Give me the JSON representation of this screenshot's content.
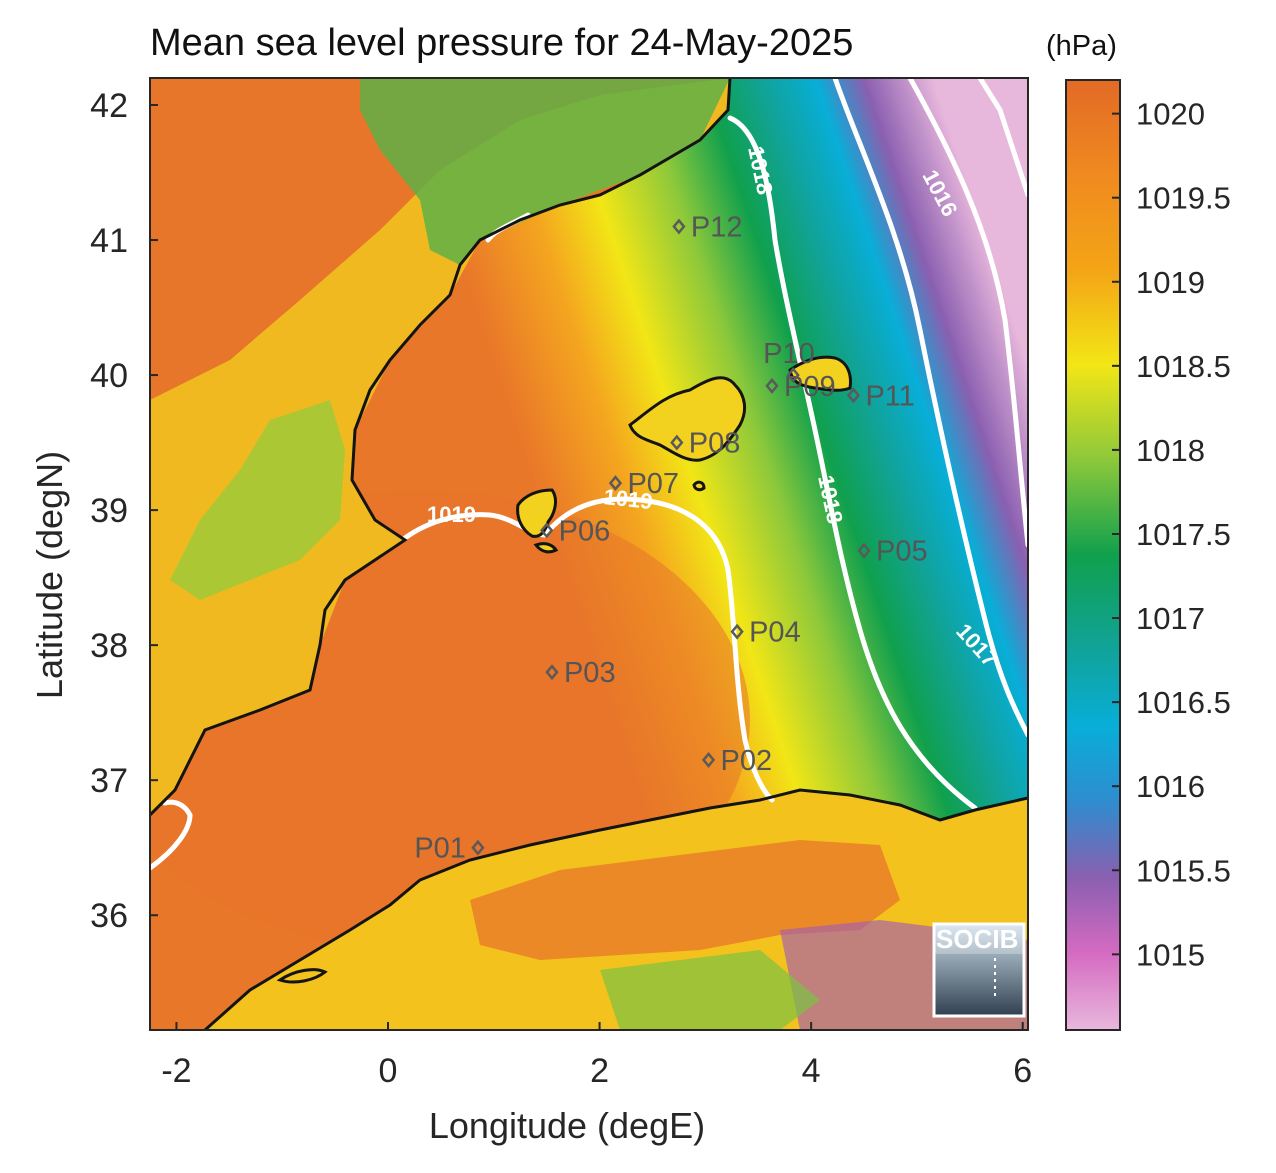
{
  "title": "Mean sea level pressure for 24-May-2025",
  "colorbar": {
    "unit": "(hPa)",
    "ticks": [
      "1020",
      "1019.5",
      "1019",
      "1018.5",
      "1018",
      "1017.5",
      "1017",
      "1016.5",
      "1016",
      "1015.5",
      "1015"
    ],
    "range": [
      1014.55,
      1020.2
    ],
    "colors": [
      "#e8b7dc",
      "#d56bc2",
      "#8a5fb0",
      "#2f8ccf",
      "#08aed8",
      "#11a39a",
      "#10a04d",
      "#8cc83b",
      "#f2e616",
      "#f4a416",
      "#e26a26"
    ]
  },
  "axes": {
    "xlabel": "Longitude (degE)",
    "ylabel": "Latitude (degN)",
    "xticks": [
      "-2",
      "0",
      "2",
      "4",
      "6"
    ],
    "yticks": [
      "42",
      "41",
      "40",
      "39",
      "38",
      "37",
      "36"
    ],
    "xlim": [
      -2.25,
      6.05
    ],
    "ylim": [
      35.15,
      42.2
    ]
  },
  "contours": [
    {
      "label": "1016"
    },
    {
      "label": "1017"
    },
    {
      "label": "1018"
    },
    {
      "label": "1018"
    },
    {
      "label": "1019"
    },
    {
      "label": "1019"
    }
  ],
  "points": [
    {
      "name": "P01",
      "lon": 0.85,
      "lat": 36.5
    },
    {
      "name": "P02",
      "lon": 3.03,
      "lat": 37.15
    },
    {
      "name": "P03",
      "lon": 1.55,
      "lat": 37.8
    },
    {
      "name": "P04",
      "lon": 3.3,
      "lat": 38.1
    },
    {
      "name": "P05",
      "lon": 4.5,
      "lat": 38.7
    },
    {
      "name": "P06",
      "lon": 1.5,
      "lat": 38.85
    },
    {
      "name": "P07",
      "lon": 2.15,
      "lat": 39.2
    },
    {
      "name": "P08",
      "lon": 2.73,
      "lat": 39.5
    },
    {
      "name": "P09",
      "lon": 3.63,
      "lat": 39.92
    },
    {
      "name": "P10",
      "lon": 3.83,
      "lat": 40.0
    },
    {
      "name": "P11",
      "lon": 4.4,
      "lat": 39.85
    },
    {
      "name": "P12",
      "lon": 2.75,
      "lat": 41.1
    }
  ],
  "logo": {
    "text": "SOCIB"
  }
}
